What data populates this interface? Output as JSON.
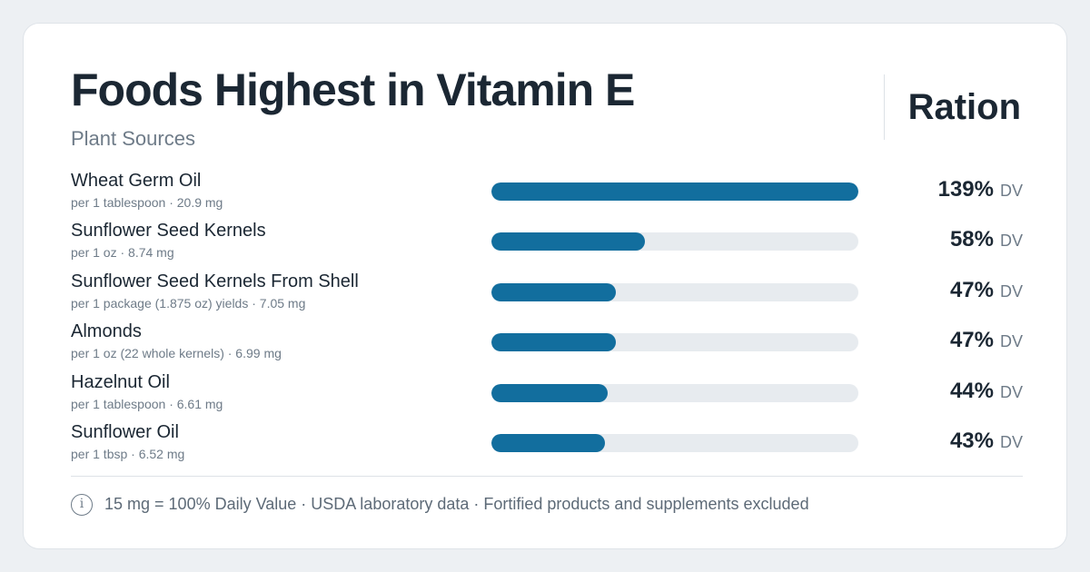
{
  "header": {
    "title": "Foods Highest in Vitamin E",
    "subtitle": "Plant Sources",
    "brand": "Ration"
  },
  "colors": {
    "bar_fill": "#126e9e",
    "bar_track": "#e7ebef",
    "text_primary": "#1b2733",
    "text_secondary": "#6e7b88"
  },
  "footer": {
    "info_icon": "i",
    "note": "15 mg = 100% Daily Value · USDA laboratory data · Fortified products and supplements excluded"
  },
  "chart_data": {
    "type": "bar",
    "orientation": "horizontal",
    "title": "Foods Highest in Vitamin E",
    "subtitle": "Plant Sources",
    "value_unit": "DV",
    "xlim": [
      0,
      139
    ],
    "grid": false,
    "rows": [
      {
        "name": "Wheat Germ Oil",
        "serving": "per 1 tablespoon · 20.9 mg",
        "value": 139,
        "label": "139%",
        "unit": "DV"
      },
      {
        "name": "Sunflower Seed Kernels",
        "serving": "per 1 oz · 8.74 mg",
        "value": 58,
        "label": "58%",
        "unit": "DV"
      },
      {
        "name": "Sunflower Seed Kernels From Shell",
        "serving": "per 1 package (1.875 oz) yields · 7.05 mg",
        "value": 47,
        "label": "47%",
        "unit": "DV"
      },
      {
        "name": "Almonds",
        "serving": "per 1 oz (22 whole kernels) · 6.99 mg",
        "value": 47,
        "label": "47%",
        "unit": "DV"
      },
      {
        "name": "Hazelnut Oil",
        "serving": "per 1 tablespoon · 6.61 mg",
        "value": 44,
        "label": "44%",
        "unit": "DV"
      },
      {
        "name": "Sunflower Oil",
        "serving": "per 1 tbsp · 6.52 mg",
        "value": 43,
        "label": "43%",
        "unit": "DV"
      }
    ]
  }
}
